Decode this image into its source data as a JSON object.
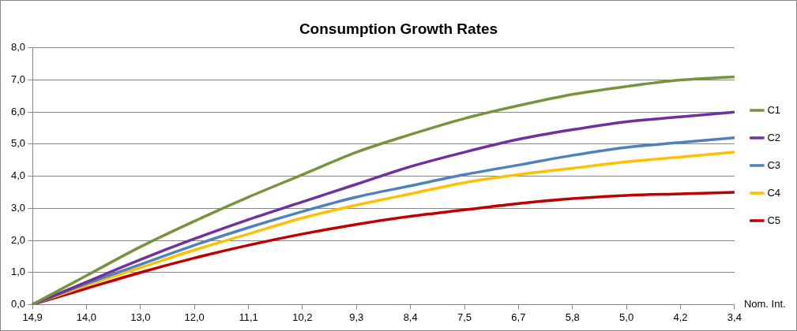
{
  "chart_data": {
    "type": "line",
    "title": "Consumption Growth Rates",
    "xlabel": "Nom. Int.",
    "categories": [
      "14,9",
      "14,0",
      "13,0",
      "12,0",
      "11,1",
      "10,2",
      "9,3",
      "8,4",
      "7,5",
      "6,7",
      "5,8",
      "5,0",
      "4,2",
      "3,4"
    ],
    "series": [
      {
        "name": "C1",
        "color": "#77933c",
        "values": [
          0,
          0.9,
          1.8,
          2.6,
          3.35,
          4.05,
          4.75,
          5.3,
          5.8,
          6.2,
          6.55,
          6.8,
          7.0,
          7.1
        ]
      },
      {
        "name": "C2",
        "color": "#7030a0",
        "values": [
          0,
          0.7,
          1.4,
          2.05,
          2.65,
          3.2,
          3.75,
          4.3,
          4.75,
          5.15,
          5.45,
          5.7,
          5.85,
          6.0
        ]
      },
      {
        "name": "C3",
        "color": "#4f81bd",
        "values": [
          0,
          0.65,
          1.25,
          1.85,
          2.4,
          2.9,
          3.35,
          3.7,
          4.05,
          4.35,
          4.65,
          4.9,
          5.05,
          5.2
        ]
      },
      {
        "name": "C4",
        "color": "#ffc000",
        "values": [
          0,
          0.6,
          1.15,
          1.7,
          2.2,
          2.7,
          3.1,
          3.45,
          3.8,
          4.05,
          4.25,
          4.45,
          4.6,
          4.75
        ]
      },
      {
        "name": "C5",
        "color": "#c00000",
        "values": [
          0,
          0.5,
          1.0,
          1.45,
          1.85,
          2.2,
          2.5,
          2.75,
          2.95,
          3.15,
          3.3,
          3.4,
          3.45,
          3.5
        ]
      }
    ],
    "ylim": [
      0,
      8
    ],
    "yticks": [
      {
        "value": 0,
        "label": "0,0"
      },
      {
        "value": 1,
        "label": "1,0"
      },
      {
        "value": 2,
        "label": "2,0"
      },
      {
        "value": 3,
        "label": "3,0"
      },
      {
        "value": 4,
        "label": "4,0"
      },
      {
        "value": 5,
        "label": "5,0"
      },
      {
        "value": 6,
        "label": "6,0"
      },
      {
        "value": 7,
        "label": "7,0"
      },
      {
        "value": 8,
        "label": "8,0"
      }
    ],
    "grid": "y",
    "legend": "right",
    "marker": "none",
    "line_style": "solid"
  }
}
